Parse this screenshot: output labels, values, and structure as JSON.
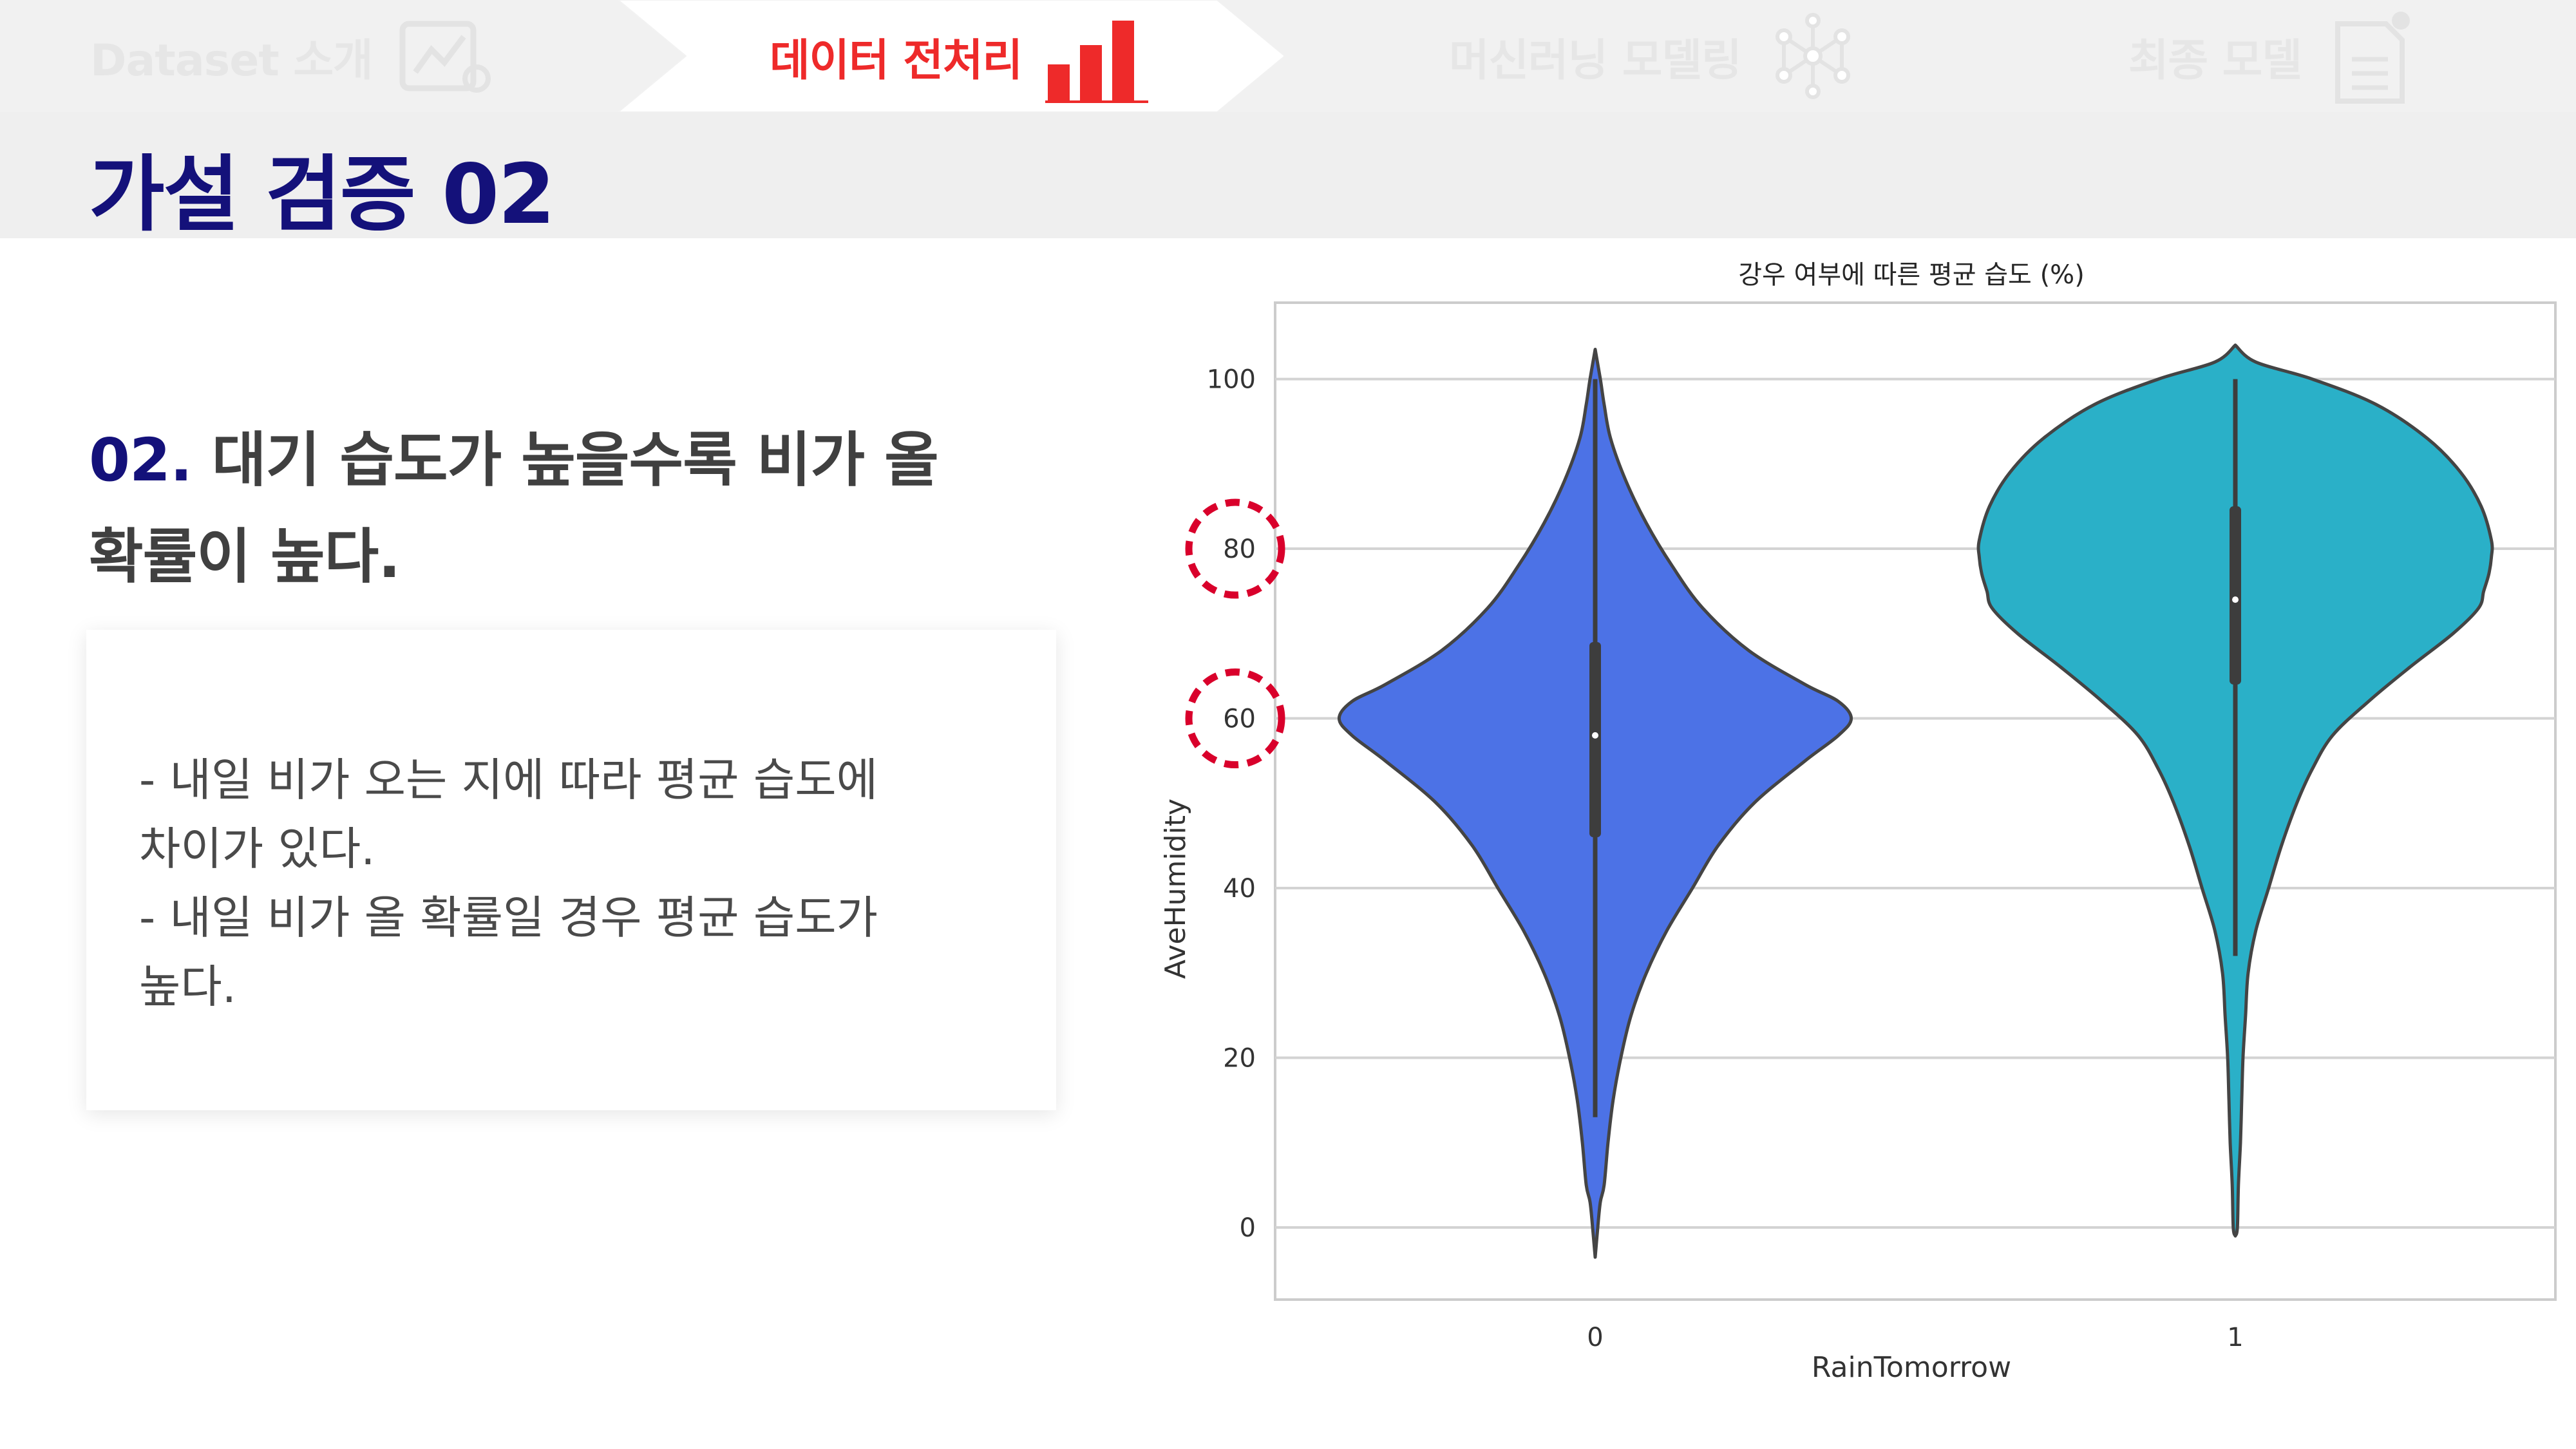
{
  "nav": {
    "steps": [
      {
        "label": "Dataset 소개",
        "state": "inactive",
        "icon": "chart-board-icon"
      },
      {
        "label": "데이터 전처리",
        "state": "active",
        "icon": "bar-chart-icon"
      },
      {
        "label": "머신러닝 모델링",
        "state": "inactive",
        "icon": "network-icon"
      },
      {
        "label": "최종 모델",
        "state": "inactive",
        "icon": "document-icon"
      }
    ],
    "active_color": "#ee2a2a",
    "inactive_color": "#e6e6e6"
  },
  "page": {
    "title": "가설 검증 02"
  },
  "hypothesis": {
    "number": "02.",
    "line1_rest": "대기 습도가 높을수록 비가 올",
    "line2": "확률이 높다."
  },
  "description": {
    "lines": [
      "- 내일 비가 오는 지에 따라 평균 습도에",
      "차이가 있다.",
      "- 내일 비가 올 확률일 경우 평균 습도가",
      "높다."
    ]
  },
  "chart_data": {
    "type": "violin",
    "title": "강우 여부에 따른 평균 습도 (%)",
    "xlabel": "RainTomorrow",
    "ylabel": "AveHumidity",
    "categories": [
      "0",
      "1"
    ],
    "ylim": [
      -8.5,
      109
    ],
    "yticks": [
      0,
      20,
      40,
      60,
      80,
      100
    ],
    "grid": true,
    "highlighted_ticks": [
      80,
      60
    ],
    "highlight_color": "#d9002b",
    "series": [
      {
        "name": "0",
        "color": "#4c72e6",
        "quartiles": {
          "q1": 46,
          "median": 58,
          "q3": 69
        },
        "whisker": [
          13,
          100
        ],
        "extent": [
          -3.5,
          103.5
        ],
        "profile": [
          [
            103.5,
            0
          ],
          [
            100,
            0.02
          ],
          [
            97,
            0.035
          ],
          [
            93,
            0.06
          ],
          [
            88,
            0.12
          ],
          [
            83,
            0.2
          ],
          [
            78,
            0.3
          ],
          [
            73,
            0.42
          ],
          [
            68,
            0.6
          ],
          [
            64,
            0.82
          ],
          [
            62,
            0.95
          ],
          [
            60,
            1.0
          ],
          [
            58,
            0.95
          ],
          [
            55,
            0.82
          ],
          [
            50,
            0.62
          ],
          [
            45,
            0.48
          ],
          [
            40,
            0.38
          ],
          [
            35,
            0.28
          ],
          [
            30,
            0.2
          ],
          [
            25,
            0.14
          ],
          [
            20,
            0.1
          ],
          [
            15,
            0.07
          ],
          [
            10,
            0.05
          ],
          [
            5,
            0.035
          ],
          [
            3,
            0.02
          ],
          [
            0,
            0.01
          ],
          [
            -3.5,
            0
          ]
        ]
      },
      {
        "name": "1",
        "color": "#2ab0c8",
        "quartiles": {
          "q1": 64,
          "median": 74,
          "q3": 85
        },
        "whisker": [
          32,
          100
        ],
        "extent": [
          -1,
          104
        ],
        "profile": [
          [
            104,
            0
          ],
          [
            102,
            0.08
          ],
          [
            100,
            0.3
          ],
          [
            97,
            0.55
          ],
          [
            93,
            0.75
          ],
          [
            89,
            0.88
          ],
          [
            85,
            0.96
          ],
          [
            81,
            1.0
          ],
          [
            79,
            1.0
          ],
          [
            77,
            0.99
          ],
          [
            75,
            0.97
          ],
          [
            73,
            0.95
          ],
          [
            70,
            0.85
          ],
          [
            66,
            0.68
          ],
          [
            62,
            0.52
          ],
          [
            58,
            0.38
          ],
          [
            54,
            0.3
          ],
          [
            50,
            0.24
          ],
          [
            45,
            0.18
          ],
          [
            40,
            0.13
          ],
          [
            35,
            0.08
          ],
          [
            30,
            0.05
          ],
          [
            25,
            0.04
          ],
          [
            20,
            0.03
          ],
          [
            15,
            0.025
          ],
          [
            10,
            0.02
          ],
          [
            5,
            0.012
          ],
          [
            0,
            0.008
          ],
          [
            -1,
            0
          ]
        ]
      }
    ]
  }
}
